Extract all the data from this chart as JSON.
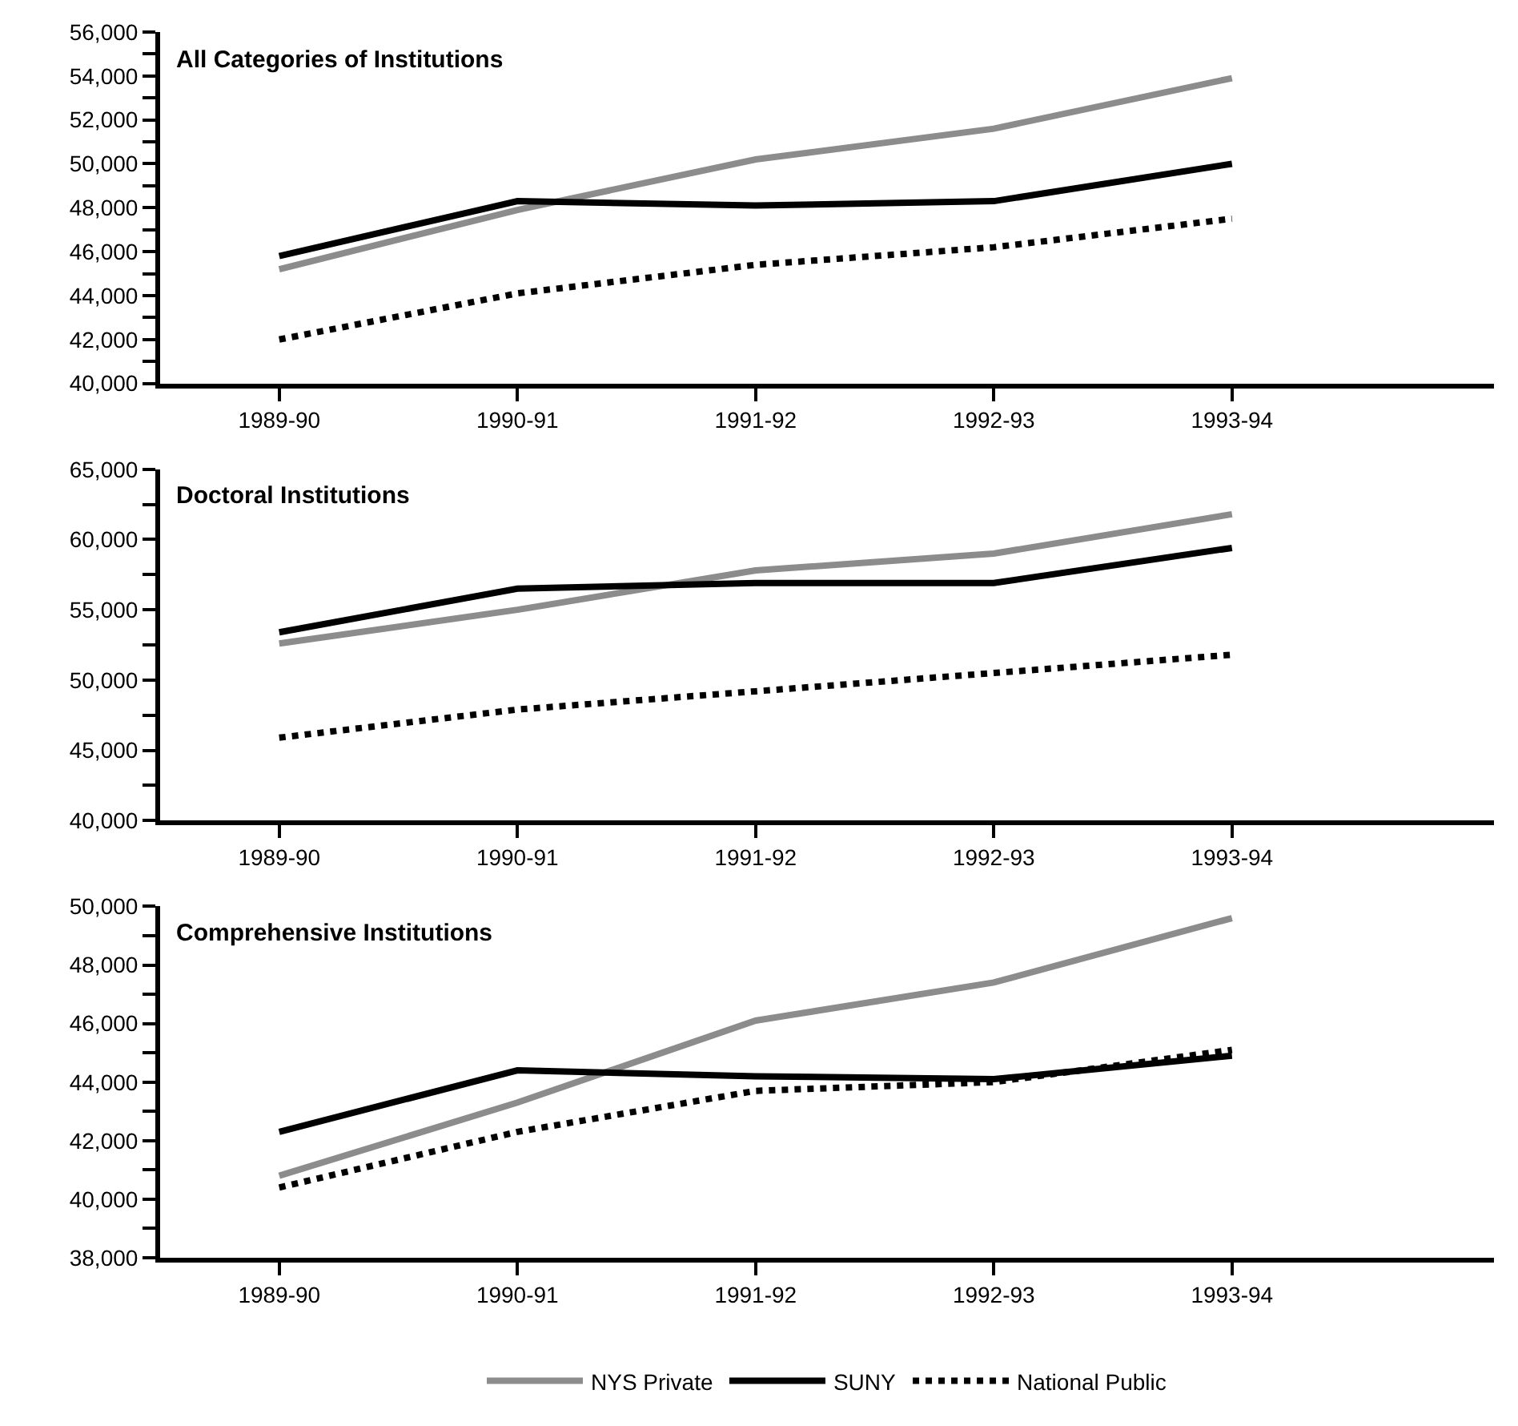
{
  "chart_data": [
    {
      "type": "line",
      "title": "All Categories of Institutions",
      "categories": [
        "1989-90",
        "1990-91",
        "1991-92",
        "1992-93",
        "1993-94"
      ],
      "series": [
        {
          "name": "NYS Private",
          "color": "#8c8c8c",
          "line_style": "solid",
          "values": [
            45200,
            47900,
            50200,
            51600,
            53900
          ]
        },
        {
          "name": "SUNY",
          "color": "#000000",
          "line_style": "solid",
          "values": [
            45800,
            48300,
            48100,
            48300,
            50000
          ]
        },
        {
          "name": "National Public",
          "color": "#000000",
          "line_style": "dotted",
          "values": [
            42000,
            44100,
            45400,
            46200,
            47500
          ]
        }
      ],
      "ylim": [
        40000,
        56000
      ],
      "yticks": [
        {
          "value": 40000,
          "label": "40,000"
        },
        {
          "value": 41000,
          "label": null
        },
        {
          "value": 42000,
          "label": "42,000"
        },
        {
          "value": 43000,
          "label": null
        },
        {
          "value": 44000,
          "label": "44,000"
        },
        {
          "value": 45000,
          "label": null
        },
        {
          "value": 46000,
          "label": "46,000"
        },
        {
          "value": 47000,
          "label": null
        },
        {
          "value": 48000,
          "label": "48,000"
        },
        {
          "value": 49000,
          "label": null
        },
        {
          "value": 50000,
          "label": "50,000"
        },
        {
          "value": 51000,
          "label": null
        },
        {
          "value": 52000,
          "label": "52,000"
        },
        {
          "value": 53000,
          "label": null
        },
        {
          "value": 54000,
          "label": "54,000"
        },
        {
          "value": 55000,
          "label": null
        },
        {
          "value": 56000,
          "label": "56,000"
        }
      ],
      "legend": "bottom",
      "marker": "none"
    },
    {
      "type": "line",
      "title": "Doctoral Institutions",
      "categories": [
        "1989-90",
        "1990-91",
        "1991-92",
        "1992-93",
        "1993-94"
      ],
      "series": [
        {
          "color": "#8c8c8c",
          "line_style": "solid",
          "values": [
            52600,
            55000,
            57800,
            59000,
            61800
          ]
        },
        {
          "color": "#000000",
          "line_style": "solid",
          "values": [
            53400,
            56500,
            56900,
            56900,
            59400
          ]
        },
        {
          "color": "#000000",
          "line_style": "dotted",
          "values": [
            45900,
            47900,
            49200,
            50500,
            51800
          ]
        }
      ],
      "ylim": [
        40000,
        65000
      ],
      "yticks": [
        {
          "value": 40000,
          "label": "40,000"
        },
        {
          "value": 42500,
          "label": null
        },
        {
          "value": 45000,
          "label": "45,000"
        },
        {
          "value": 47500,
          "label": null
        },
        {
          "value": 50000,
          "label": "50,000"
        },
        {
          "value": 52500,
          "label": null
        },
        {
          "value": 55000,
          "label": "55,000"
        },
        {
          "value": 57500,
          "label": null
        },
        {
          "value": 60000,
          "label": "60,000"
        },
        {
          "value": 62500,
          "label": null
        },
        {
          "value": 65000,
          "label": "65,000"
        }
      ],
      "legend": false,
      "marker": "none"
    },
    {
      "type": "line",
      "title": "Comprehensive Institutions",
      "categories": [
        "1989-90",
        "1990-91",
        "1991-92",
        "1992-93",
        "1993-94"
      ],
      "series": [
        {
          "color": "#8c8c8c",
          "line_style": "solid",
          "values": [
            40800,
            43300,
            46100,
            47400,
            49600
          ]
        },
        {
          "color": "#000000",
          "line_style": "solid",
          "values": [
            42300,
            44400,
            44200,
            44100,
            44900
          ]
        },
        {
          "color": "#000000",
          "line_style": "dotted",
          "values": [
            40400,
            42300,
            43700,
            44000,
            45100
          ]
        }
      ],
      "ylim": [
        38000,
        50000
      ],
      "yticks": [
        {
          "value": 38000,
          "label": "38,000"
        },
        {
          "value": 39000,
          "label": null
        },
        {
          "value": 40000,
          "label": "40,000"
        },
        {
          "value": 41000,
          "label": null
        },
        {
          "value": 42000,
          "label": "42,000"
        },
        {
          "value": 43000,
          "label": null
        },
        {
          "value": 44000,
          "label": "44,000"
        },
        {
          "value": 45000,
          "label": null
        },
        {
          "value": 46000,
          "label": "46,000"
        },
        {
          "value": 47000,
          "label": null
        },
        {
          "value": 48000,
          "label": "48,000"
        },
        {
          "value": 49000,
          "label": null
        },
        {
          "value": 50000,
          "label": "50,000"
        }
      ],
      "legend": false,
      "marker": "none"
    }
  ]
}
